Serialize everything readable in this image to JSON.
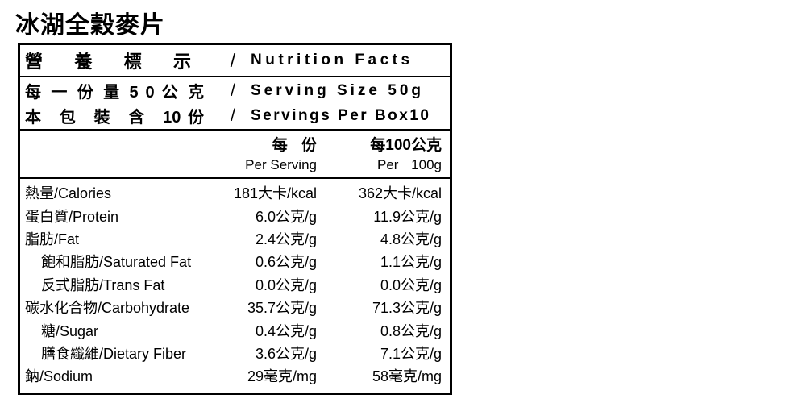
{
  "title": "冰湖全穀麥片",
  "colors": {
    "text": "#000000",
    "background": "#ffffff",
    "border": "#000000"
  },
  "table": {
    "header": {
      "zh": "營 養 標 示",
      "sep": "/",
      "en": "Nutrition Facts"
    },
    "serving": {
      "line1": {
        "zh": "每 一 份 量 5 0 公 克",
        "sep": "/",
        "en": "Serving Size 50g"
      },
      "line2": {
        "zh": "本 包 裝 含 10份",
        "sep": "/",
        "en": "Servings Per Box10"
      }
    },
    "columns": {
      "per_serving": {
        "zh": "每 份",
        "en": "Per Serving"
      },
      "per_100g": {
        "zh": "每100公克",
        "en": "Per 100g"
      }
    },
    "rows": [
      {
        "label": "熱量/Calories",
        "per_serving": "181大卡/kcal",
        "per_100g": "362大卡/kcal"
      },
      {
        "label": "蛋白質/Protein",
        "per_serving": "6.0公克/g",
        "per_100g": "11.9公克/g"
      },
      {
        "label": "脂肪/Fat",
        "per_serving": "2.4公克/g",
        "per_100g": "4.8公克/g"
      },
      {
        "label": "飽和脂肪/Saturated Fat",
        "per_serving": "0.6公克/g",
        "per_100g": "1.1公克/g"
      },
      {
        "label": "反式脂肪/Trans Fat",
        "per_serving": "0.0公克/g",
        "per_100g": "0.0公克/g"
      },
      {
        "label": "碳水化合物/Carbohydrate",
        "per_serving": "35.7公克/g",
        "per_100g": "71.3公克/g"
      },
      {
        "label": "糖/Sugar",
        "per_serving": "0.4公克/g",
        "per_100g": "0.8公克/g"
      },
      {
        "label": "膳食纖維/Dietary Fiber",
        "per_serving": "3.6公克/g",
        "per_100g": "7.1公克/g"
      },
      {
        "label": "鈉/Sodium",
        "per_serving": "29毫克/mg",
        "per_100g": "58毫克/mg"
      }
    ]
  }
}
